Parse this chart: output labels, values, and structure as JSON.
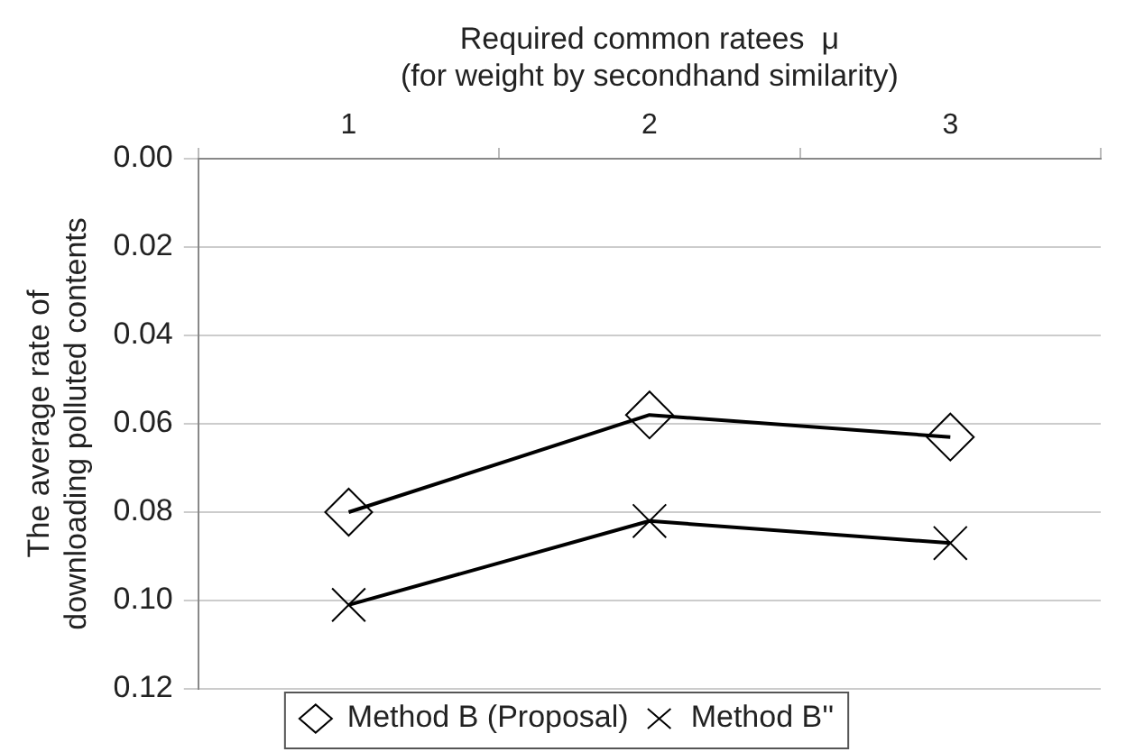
{
  "chart_data": {
    "type": "line",
    "xlabel": "Required common ratees  μ\n(for weight by secondhand similarity)",
    "ylabel": "The average rate of\ndownloading polluted contents",
    "categories": [
      "1",
      "2",
      "3"
    ],
    "series": [
      {
        "name": "Method B (Proposal)",
        "color": "#000000",
        "marker": "diamond",
        "values": [
          0.08,
          0.058,
          0.063
        ]
      },
      {
        "name": "Method B''",
        "color": "#000000",
        "marker": "cross",
        "values": [
          0.101,
          0.082,
          0.087
        ]
      }
    ],
    "ylim": [
      0.12,
      0
    ],
    "yticks": [
      {
        "value": 0,
        "label": "0.00"
      },
      {
        "value": 0.02,
        "label": "0.02"
      },
      {
        "value": 0.04,
        "label": "0.04"
      },
      {
        "value": 0.06,
        "label": "0.06"
      },
      {
        "value": 0.08,
        "label": "0.08"
      },
      {
        "value": 0.1,
        "label": "0.10"
      },
      {
        "value": 0.12,
        "label": "0.12"
      }
    ],
    "grid": "y",
    "legend": "bottom"
  }
}
